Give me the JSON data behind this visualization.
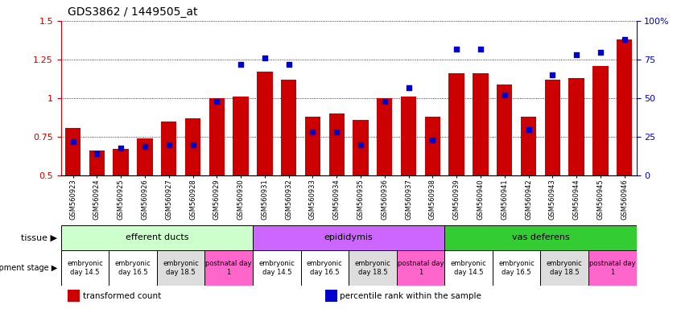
{
  "title": "GDS3862 / 1449505_at",
  "samples": [
    "GSM560923",
    "GSM560924",
    "GSM560925",
    "GSM560926",
    "GSM560927",
    "GSM560928",
    "GSM560929",
    "GSM560930",
    "GSM560931",
    "GSM560932",
    "GSM560933",
    "GSM560934",
    "GSM560935",
    "GSM560936",
    "GSM560937",
    "GSM560938",
    "GSM560939",
    "GSM560940",
    "GSM560941",
    "GSM560942",
    "GSM560943",
    "GSM560944",
    "GSM560945",
    "GSM560946"
  ],
  "transformed_count": [
    0.81,
    0.66,
    0.67,
    0.74,
    0.85,
    0.87,
    1.0,
    1.01,
    1.17,
    1.12,
    0.88,
    0.9,
    0.86,
    1.0,
    1.01,
    0.88,
    1.16,
    1.16,
    1.09,
    0.88,
    1.12,
    1.13,
    1.21,
    1.38
  ],
  "percentile_rank": [
    22,
    14,
    18,
    19,
    20,
    20,
    48,
    72,
    76,
    72,
    28,
    28,
    20,
    48,
    57,
    23,
    82,
    82,
    52,
    30,
    65,
    78,
    80,
    88
  ],
  "bar_color": "#cc0000",
  "dot_color": "#0000cc",
  "ylim_left": [
    0.5,
    1.5
  ],
  "ylim_right": [
    0,
    100
  ],
  "yticks_left": [
    0.5,
    0.75,
    1.0,
    1.25,
    1.5
  ],
  "yticks_right": [
    0,
    25,
    50,
    75,
    100
  ],
  "tissue_groups": [
    {
      "label": "efferent ducts",
      "start": 0,
      "end": 8,
      "color": "#ccffcc"
    },
    {
      "label": "epididymis",
      "start": 8,
      "end": 16,
      "color": "#cc66ff"
    },
    {
      "label": "vas deferens",
      "start": 16,
      "end": 24,
      "color": "#33cc33"
    }
  ],
  "dev_stage_groups": [
    {
      "label": "embryonic\nday 14.5",
      "start": 0,
      "end": 2,
      "color": "#ffffff"
    },
    {
      "label": "embryonic\nday 16.5",
      "start": 2,
      "end": 4,
      "color": "#ffffff"
    },
    {
      "label": "embryonic\nday 18.5",
      "start": 4,
      "end": 6,
      "color": "#dddddd"
    },
    {
      "label": "postnatal day\n1",
      "start": 6,
      "end": 8,
      "color": "#ff66cc"
    },
    {
      "label": "embryonic\nday 14.5",
      "start": 8,
      "end": 10,
      "color": "#ffffff"
    },
    {
      "label": "embryonic\nday 16.5",
      "start": 10,
      "end": 12,
      "color": "#ffffff"
    },
    {
      "label": "embryonic\nday 18.5",
      "start": 12,
      "end": 14,
      "color": "#dddddd"
    },
    {
      "label": "postnatal day\n1",
      "start": 14,
      "end": 16,
      "color": "#ff66cc"
    },
    {
      "label": "embryonic\nday 14.5",
      "start": 16,
      "end": 18,
      "color": "#ffffff"
    },
    {
      "label": "embryonic\nday 16.5",
      "start": 18,
      "end": 20,
      "color": "#ffffff"
    },
    {
      "label": "embryonic\nday 18.5",
      "start": 20,
      "end": 22,
      "color": "#dddddd"
    },
    {
      "label": "postnatal day\n1",
      "start": 22,
      "end": 24,
      "color": "#ff66cc"
    }
  ],
  "tissue_label": "tissue",
  "dev_stage_label": "development stage",
  "legend_items": [
    {
      "label": "transformed count",
      "color": "#cc0000"
    },
    {
      "label": "percentile rank within the sample",
      "color": "#0000cc"
    }
  ],
  "bg_color": "#ffffff",
  "bar_width": 0.65,
  "dot_size": 18
}
